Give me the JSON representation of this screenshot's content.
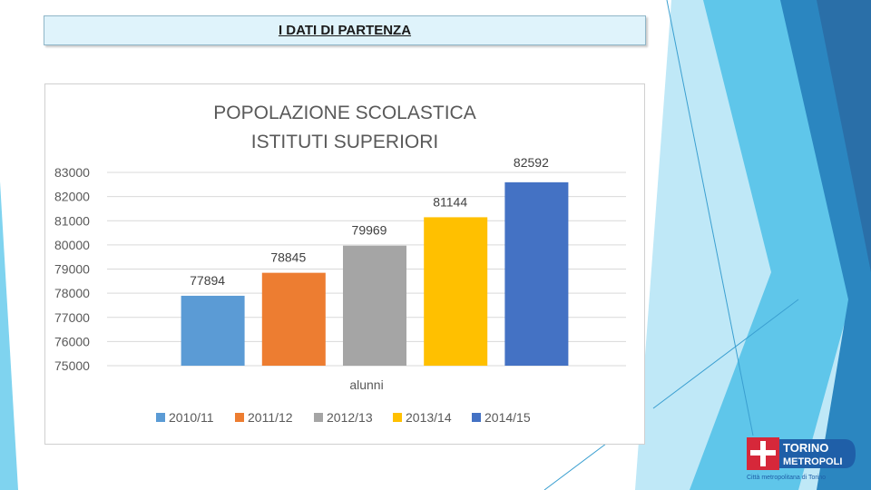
{
  "header": {
    "title": "I DATI DI PARTENZA"
  },
  "chart_data": {
    "type": "bar",
    "title_lines": [
      "POPOLAZIONE SCOLASTICA",
      "ISTITUTI SUPERIORI"
    ],
    "xlabel": "alunni",
    "ylabel": "",
    "ylim": [
      75000,
      83000
    ],
    "yticks": [
      75000,
      76000,
      77000,
      78000,
      79000,
      80000,
      81000,
      82000,
      83000
    ],
    "grid": true,
    "legend_position": "bottom",
    "series": [
      {
        "name": "2010/11",
        "value": 77894,
        "color": "#5b9bd5"
      },
      {
        "name": "2011/12",
        "value": 78845,
        "color": "#ed7d31"
      },
      {
        "name": "2012/13",
        "value": 79969,
        "color": "#a5a5a5"
      },
      {
        "name": "2013/14",
        "value": 81144,
        "color": "#ffc000"
      },
      {
        "name": "2014/15",
        "value": 82592,
        "color": "#4472c4"
      }
    ]
  },
  "logo": {
    "line1": "TORINO",
    "line2": "METROPOLI",
    "tagline": "Città metropolitana di Torino"
  },
  "colors": {
    "accent_light": "#7fd3ef",
    "accent_mid": "#2ea6da",
    "accent_dark": "#1f6fa5"
  }
}
